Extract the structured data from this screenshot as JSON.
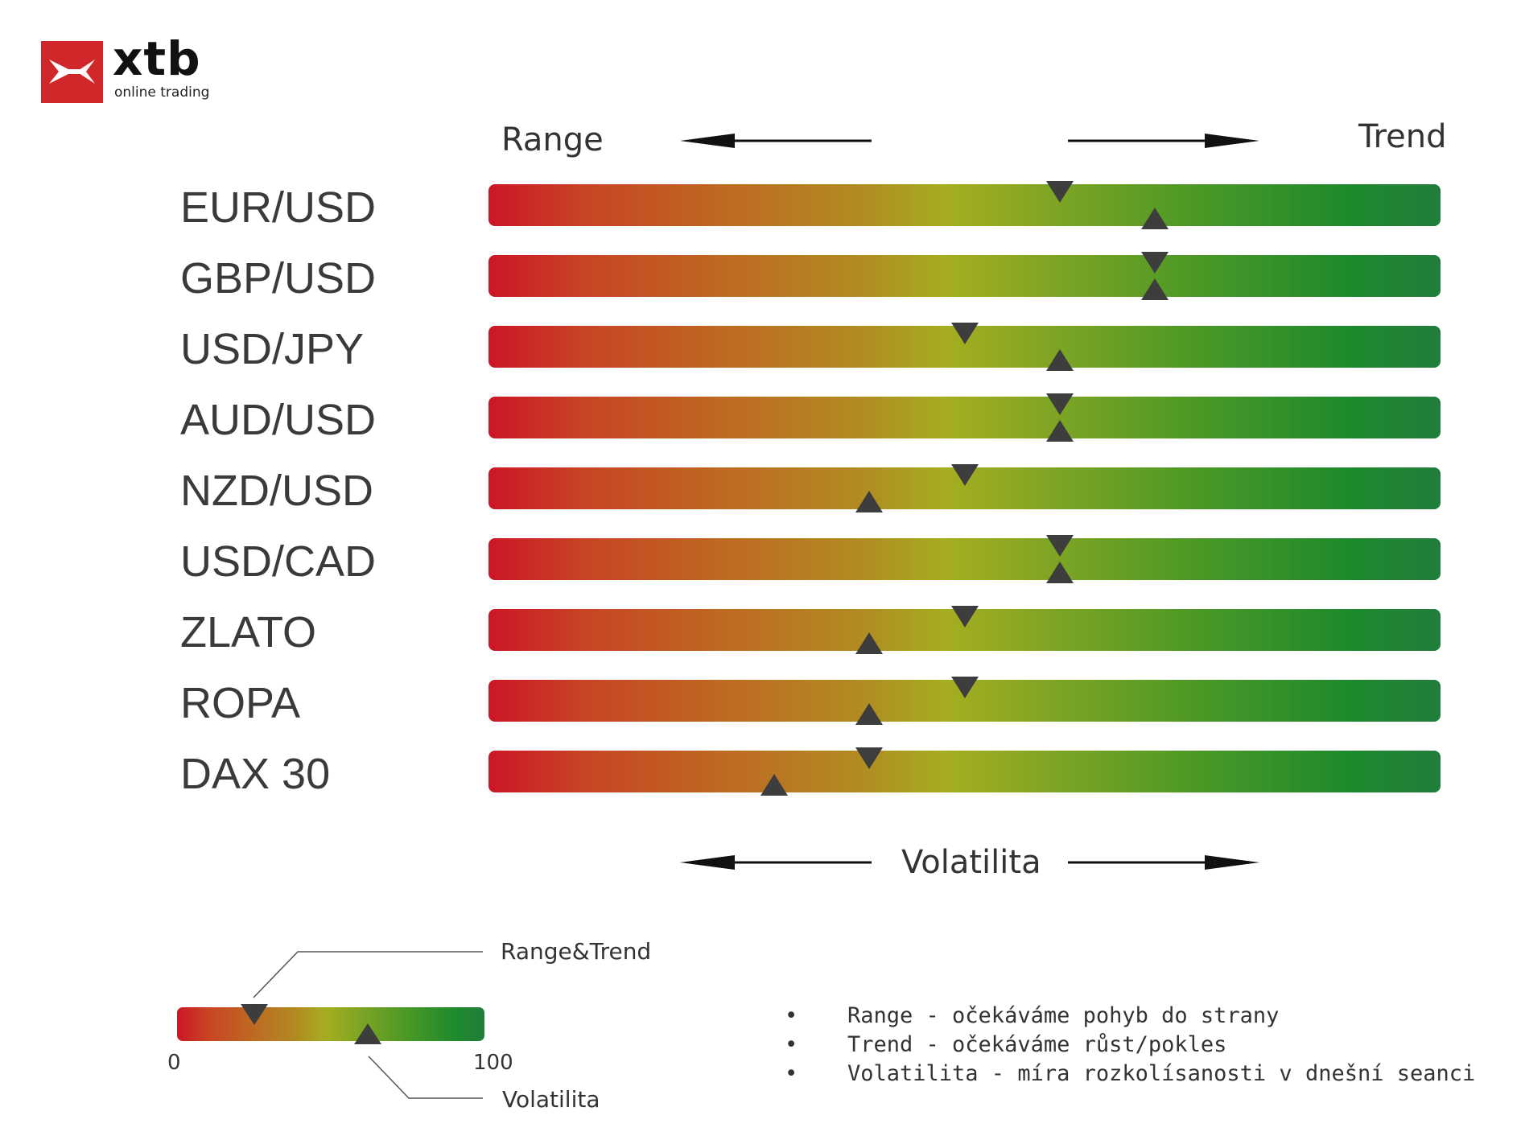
{
  "brand": {
    "name": "xtb",
    "tagline": "online trading",
    "logo_color": "#d0272b"
  },
  "header": {
    "left_label": "Range",
    "right_label": "Trend"
  },
  "footer": {
    "axis_label": "Volatilita"
  },
  "legend": {
    "top_label": "Range&Trend",
    "bottom_label": "Volatilita",
    "min_label": "0",
    "max_label": "100",
    "example_range_trend": 25,
    "example_volatility": 62
  },
  "notes": [
    "Range - očekáváme pohyb do strany",
    "Trend - očekáváme růst/pokles",
    "Volatilita - míra rozkolísanosti v dnešní seanci"
  ],
  "colors": {
    "bar_start": "#cc1626",
    "bar_mid": "#a5ad21",
    "bar_end": "#217d3b",
    "marker": "#3d3d3d"
  },
  "chart_data": {
    "type": "table",
    "scale": [
      0,
      100
    ],
    "series": [
      {
        "name": "Range&Trend"
      },
      {
        "name": "Volatilita"
      }
    ],
    "rows": [
      {
        "instrument": "EUR/USD",
        "range_trend": 60,
        "volatility": 70
      },
      {
        "instrument": "GBP/USD",
        "range_trend": 70,
        "volatility": 70
      },
      {
        "instrument": "USD/JPY",
        "range_trend": 50,
        "volatility": 60
      },
      {
        "instrument": "AUD/USD",
        "range_trend": 60,
        "volatility": 60
      },
      {
        "instrument": "NZD/USD",
        "range_trend": 50,
        "volatility": 40
      },
      {
        "instrument": "USD/CAD",
        "range_trend": 60,
        "volatility": 60
      },
      {
        "instrument": "ZLATO",
        "range_trend": 50,
        "volatility": 40
      },
      {
        "instrument": "ROPA",
        "range_trend": 50,
        "volatility": 40
      },
      {
        "instrument": "DAX 30",
        "range_trend": 40,
        "volatility": 30
      }
    ]
  }
}
